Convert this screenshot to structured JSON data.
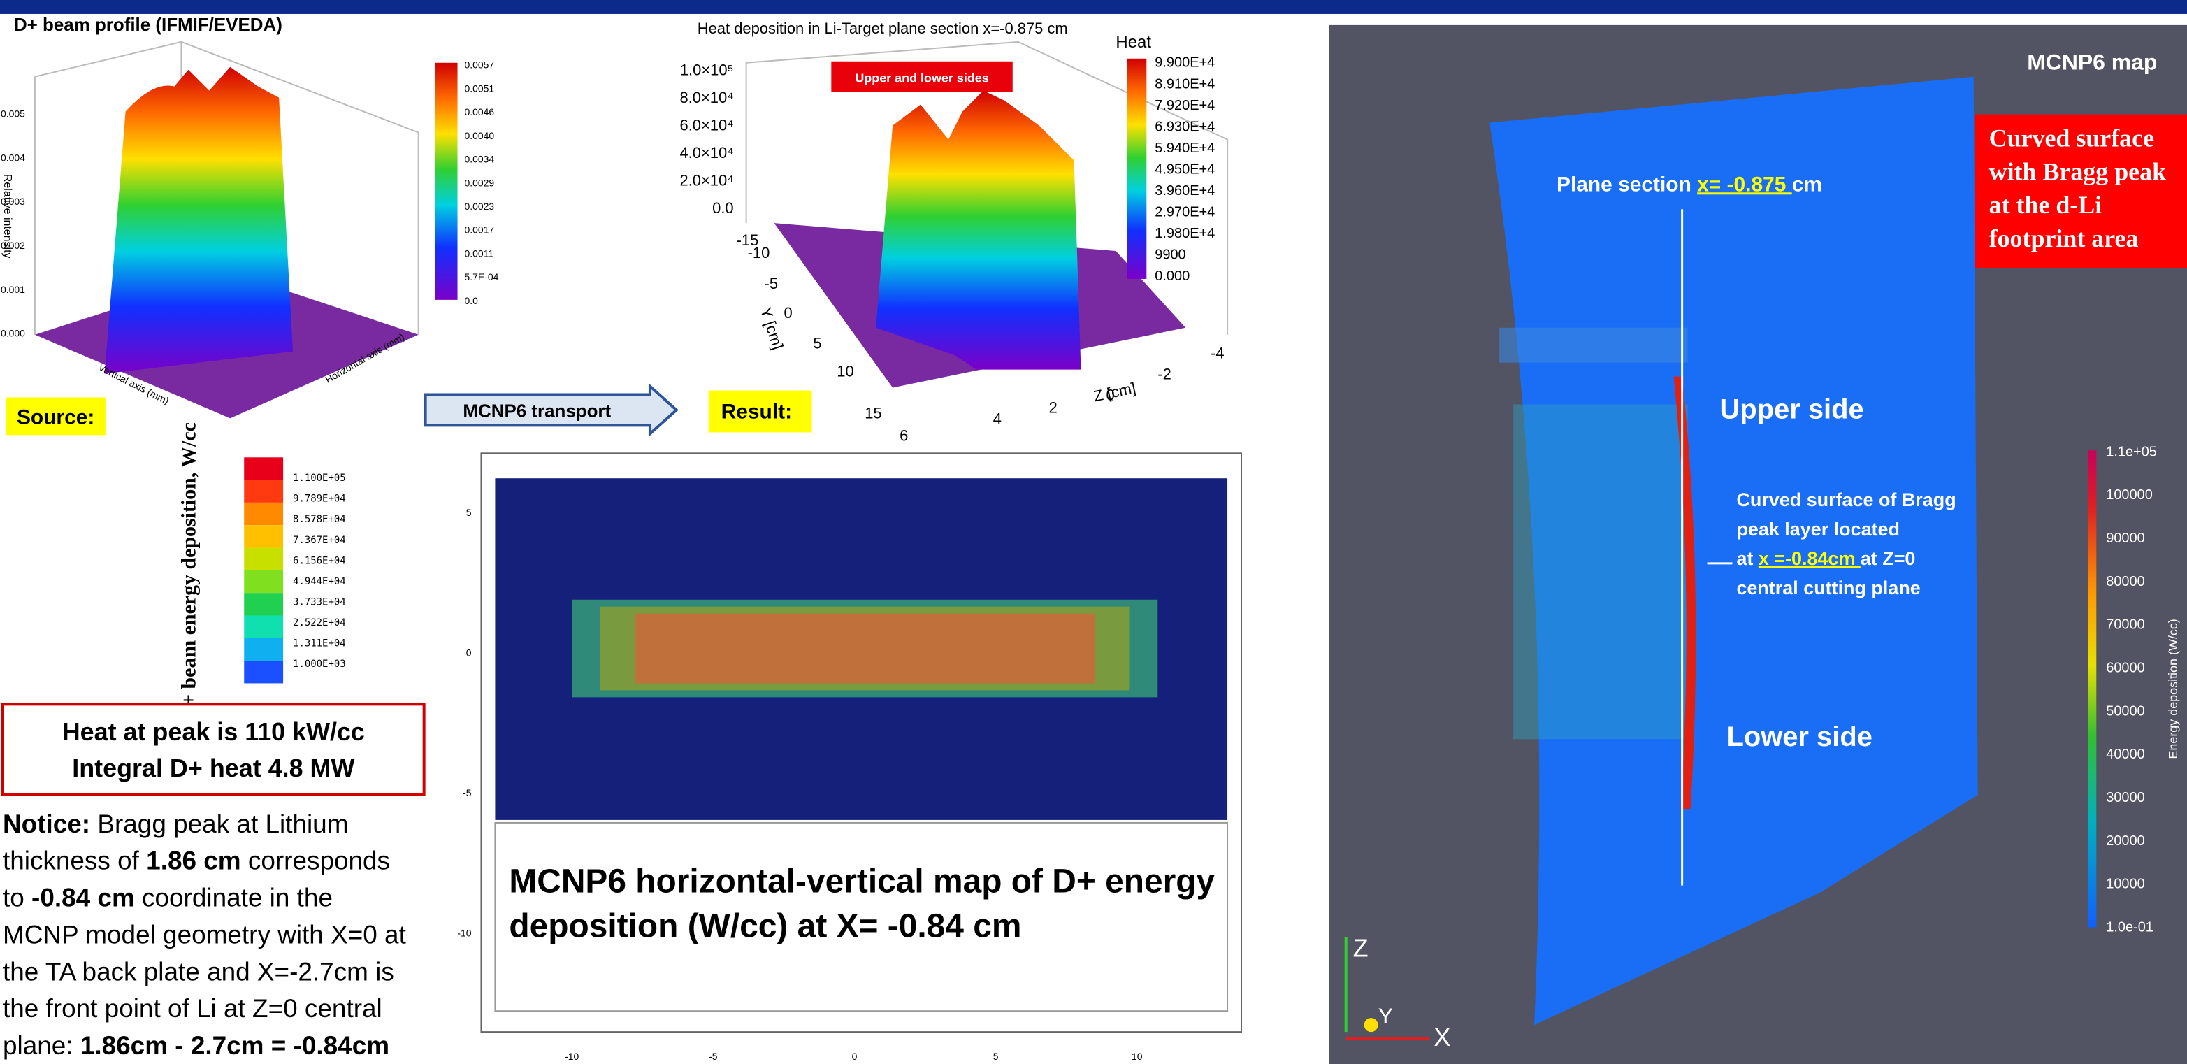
{
  "beam_profile": {
    "title": "D+ beam profile (IFMIF/EVEDA)",
    "y_axis_label": "Relative intensity",
    "x_axis_label": "Vertical axis (mm)",
    "z_axis_label": "Horizontal axis (mm)",
    "y_ticks": [
      "0.005",
      "0.004",
      "0.003",
      "0.002",
      "0.001",
      "0.000"
    ],
    "colorbar": [
      "0.0057",
      "0.0051",
      "0.0046",
      "0.0040",
      "0.0034",
      "0.0029",
      "0.0023",
      "0.0017",
      "0.0011",
      "5.7E-04",
      "0.0"
    ],
    "tag": "Source:"
  },
  "transport_arrow": "MCNP6 transport",
  "heat_plot": {
    "title": "Heat deposition in Li-Target plane section x=-0.875 cm",
    "colorbar_title": "Heat",
    "colorbar": [
      "9.900E+4",
      "8.910E+4",
      "7.920E+4",
      "6.930E+4",
      "5.940E+4",
      "4.950E+4",
      "3.960E+4",
      "2.970E+4",
      "1.980E+4",
      "9900",
      "0.000"
    ],
    "z_ticks": [
      "1.0×10⁵",
      "8.0×10⁴",
      "6.0×10⁴",
      "4.0×10⁴",
      "2.0×10⁴",
      "0.0"
    ],
    "annotation": "Upper and lower sides",
    "y_axis_label": "Y [cm]",
    "z_axis_label": "Z [cm]",
    "y_axis_ticks": [
      "-15",
      "-10",
      "-5",
      "0",
      "5",
      "10",
      "15"
    ],
    "z_axis_ticks": [
      "6",
      "4",
      "2",
      "0",
      "-2",
      "-4"
    ],
    "tag": "Result:"
  },
  "deposition_map": {
    "colorbar_title": "D+ beam energy deposition, W/cc",
    "colorbar": [
      "1.100E+05",
      "9.789E+04",
      "8.578E+04",
      "7.367E+04",
      "6.156E+04",
      "4.944E+04",
      "3.733E+04",
      "2.522E+04",
      "1.311E+04",
      "1.000E+03"
    ],
    "y_ticks": [
      "5",
      "0",
      "-5",
      "-10"
    ],
    "x_ticks": [
      "-10",
      "-5",
      "0",
      "5",
      "10"
    ],
    "caption": [
      "MCNP6 horizontal-vertical map of D+ energy",
      "deposition (W/cc) at X= -0.84 cm"
    ]
  },
  "heat_summary": [
    "Heat at peak is 110 kW/cc",
    "Integral D+ heat 4.8 MW"
  ],
  "notice": [
    [
      {
        "text": "Notice:",
        "bold": true
      },
      {
        "text": " Bragg peak at Lithium"
      }
    ],
    [
      {
        "text": "thickness of "
      },
      {
        "text": "1.86 cm",
        "bold": true
      },
      {
        "text": " corresponds"
      }
    ],
    [
      {
        "text": "to "
      },
      {
        "text": "-0.84 cm",
        "bold": true
      },
      {
        "text": " coordinate in the"
      }
    ],
    [
      {
        "text": "MCNP model geometry with X=0 at"
      }
    ],
    [
      {
        "text": "the TA back plate and X=-2.7cm is"
      }
    ],
    [
      {
        "text": "the front point of Li at Z=0 central"
      }
    ],
    [
      {
        "text": "plane: "
      },
      {
        "text": "1.86cm - 2.7cm = -0.84cm",
        "bold": true
      }
    ]
  ],
  "mcnp_map": {
    "title": "MCNP6 map",
    "callout": [
      "Curved surface",
      "with Bragg peak",
      "at the d-Li",
      "footprint area"
    ],
    "plane_section": [
      {
        "text": "Plane section "
      },
      {
        "text": "x= -0.875 ",
        "highlight": true
      },
      {
        "text": "cm"
      }
    ],
    "upper_label": "Upper side",
    "lower_label": "Lower side",
    "bragg_note": [
      [
        {
          "text": "Curved surface of Bragg"
        }
      ],
      [
        {
          "text": "peak layer located"
        }
      ],
      [
        {
          "text": "at "
        },
        {
          "text": "x =-0.84cm ",
          "highlight": true
        },
        {
          "text": "at Z=0"
        }
      ],
      [
        {
          "text": "central cutting plane"
        }
      ]
    ],
    "colorbar_title": "Energy deposition (W/cc)",
    "colorbar": [
      "1.1e+05",
      "100000",
      "90000",
      "80000",
      "70000",
      "60000",
      "50000",
      "40000",
      "30000",
      "20000",
      "10000",
      "1.0e-01"
    ],
    "axes": [
      "Z",
      "Y",
      "X"
    ]
  }
}
